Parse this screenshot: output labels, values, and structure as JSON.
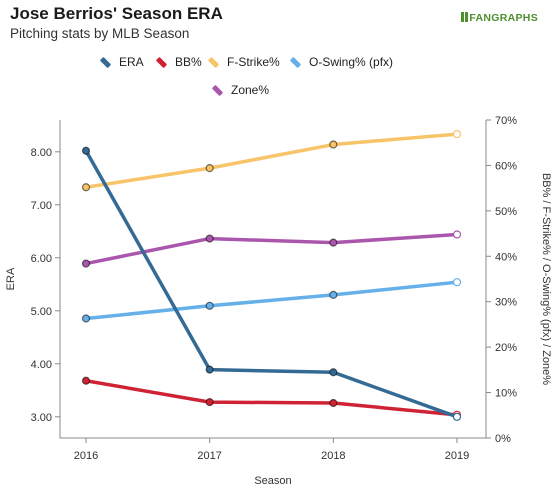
{
  "header": {
    "title": "Jose Berrios' Season ERA",
    "subtitle": "Pitching stats by MLB Season",
    "logo": "FANGRAPHS"
  },
  "chart_data": {
    "type": "line",
    "title": "Jose Berrios' Season ERA",
    "subtitle": "Pitching stats by MLB Season",
    "xlabel": "Season",
    "ylabel_left": "ERA",
    "ylabel_right": "BB% / F-Strike% / O-Swing% (pfx) / Zone%",
    "categories": [
      "2016",
      "2017",
      "2018",
      "2019"
    ],
    "left_axis": {
      "ylim": [
        2.6,
        8.6
      ],
      "ticks": [
        "3.00",
        "4.00",
        "5.00",
        "6.00",
        "7.00",
        "8.00"
      ]
    },
    "right_axis": {
      "ylim": [
        0,
        70
      ],
      "ticks": [
        "0%",
        "10%",
        "20%",
        "30%",
        "40%",
        "50%",
        "60%",
        "70%"
      ]
    },
    "series": [
      {
        "name": "ERA",
        "axis": "left",
        "color": "#336b94",
        "values": [
          8.02,
          3.89,
          3.84,
          3.0
        ]
      },
      {
        "name": "BB%",
        "axis": "right",
        "color": "#cf2234",
        "values": [
          12.6,
          7.9,
          7.7,
          5.1
        ]
      },
      {
        "name": "F-Strike%",
        "axis": "right",
        "color": "#f8c46a",
        "values": [
          55.2,
          59.4,
          64.6,
          66.9
        ]
      },
      {
        "name": "O-Swing% (pfx)",
        "axis": "right",
        "color": "#66b0ea",
        "values": [
          26.3,
          29.1,
          31.5,
          34.3
        ]
      },
      {
        "name": "Zone%",
        "axis": "right",
        "color": "#ab56ad",
        "values": [
          38.4,
          43.9,
          43.0,
          44.8
        ]
      }
    ],
    "grid": false,
    "legend_position": "top"
  }
}
